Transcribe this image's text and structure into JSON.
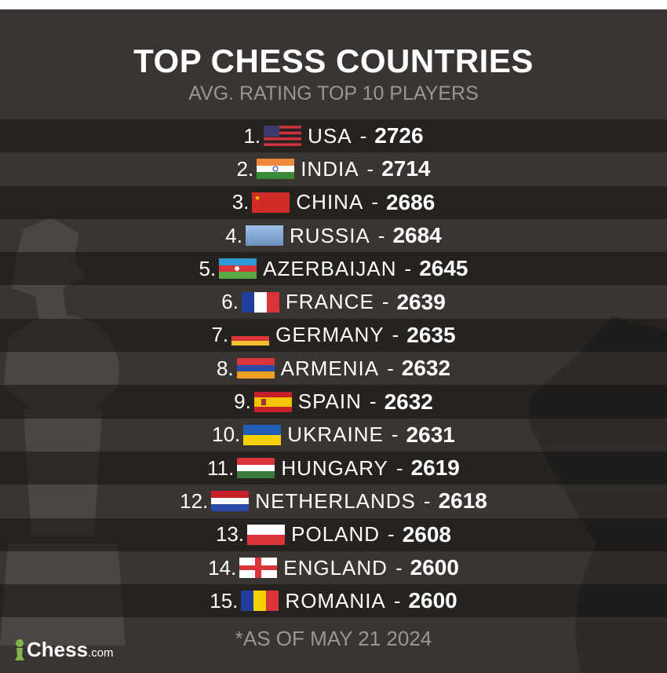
{
  "title": "TOP CHESS COUNTRIES",
  "subtitle": "AVG. RATING TOP 10 PLAYERS",
  "rows": [
    {
      "rank": "1.",
      "flag": "usa-flag",
      "name": "USA",
      "rating": "2726"
    },
    {
      "rank": "2.",
      "flag": "india-flag",
      "name": "INDIA",
      "rating": "2714"
    },
    {
      "rank": "3.",
      "flag": "china-flag",
      "name": "CHINA",
      "rating": "2686"
    },
    {
      "rank": "4.",
      "flag": "russia-placeholder-flag",
      "name": "RUSSIA",
      "rating": "2684"
    },
    {
      "rank": "5.",
      "flag": "azerbaijan-flag",
      "name": "AZERBAIJAN",
      "rating": "2645"
    },
    {
      "rank": "6.",
      "flag": "france-flag",
      "name": "FRANCE",
      "rating": "2639"
    },
    {
      "rank": "7.",
      "flag": "germany-flag",
      "name": "GERMANY",
      "rating": "2635"
    },
    {
      "rank": "8.",
      "flag": "armenia-flag",
      "name": "ARMENIA",
      "rating": "2632"
    },
    {
      "rank": "9.",
      "flag": "spain-flag",
      "name": "SPAIN",
      "rating": "2632"
    },
    {
      "rank": "10.",
      "flag": "ukraine-flag",
      "name": "UKRAINE",
      "rating": "2631"
    },
    {
      "rank": "11.",
      "flag": "hungary-flag",
      "name": "HUNGARY",
      "rating": "2619"
    },
    {
      "rank": "12.",
      "flag": "netherlands-flag",
      "name": "NETHERLANDS",
      "rating": "2618"
    },
    {
      "rank": "13.",
      "flag": "poland-flag",
      "name": "POLAND",
      "rating": "2608"
    },
    {
      "rank": "14.",
      "flag": "england-flag",
      "name": "ENGLAND",
      "rating": "2600"
    },
    {
      "rank": "15.",
      "flag": "romania-flag",
      "name": "ROMANIA",
      "rating": "2600"
    }
  ],
  "dash": "-",
  "footnote": "*AS OF MAY 21 2024",
  "logo": {
    "main": "Chess",
    "suffix": ".com"
  },
  "colors": {
    "background": "#3a3532",
    "stripe": "#2a2826",
    "subtitle": "#9a9693",
    "logo_green": "#81b64c"
  }
}
